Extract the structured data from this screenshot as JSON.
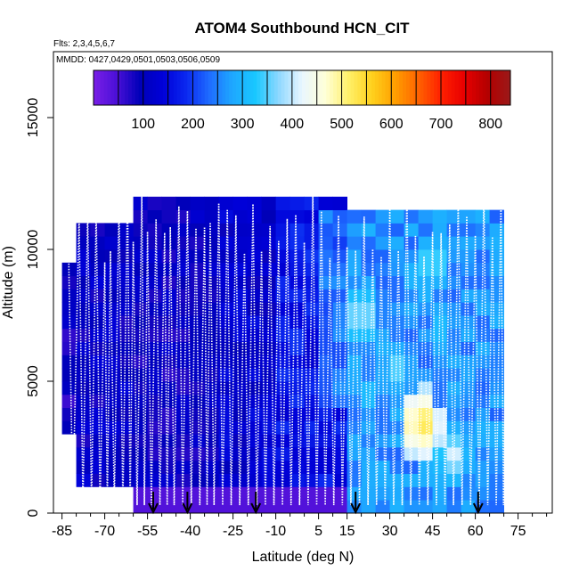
{
  "chart_data": {
    "type": "heatmap",
    "title": "ATOM4 Southbound HCN_CIT",
    "flights_note": "Flts: 2,3,4,5,6,7",
    "dates_note": "MMDD: 0427,0429,0501,0503,0506,0509",
    "xlabel": "Latitude (deg N)",
    "ylabel": "Altitude (m)",
    "xlim": [
      -88,
      87
    ],
    "ylim": [
      0,
      17500
    ],
    "x_ticks": [
      -85,
      -70,
      -55,
      -40,
      -25,
      -10,
      5,
      15,
      30,
      45,
      60,
      75
    ],
    "x_tick_labels": [
      "-85",
      "-70",
      "-55",
      "-40",
      "-25",
      "-10",
      "5",
      "15",
      "30",
      "45",
      "60",
      "75"
    ],
    "y_ticks": [
      0,
      5000,
      10000,
      15000
    ],
    "y_tick_labels": [
      "0",
      "5000",
      "10000",
      "15000"
    ],
    "colorbar": {
      "range": [
        0,
        840
      ],
      "ticks": [
        100,
        200,
        300,
        400,
        500,
        600,
        700,
        800
      ],
      "tick_labels": [
        "100",
        "200",
        "300",
        "400",
        "500",
        "600",
        "700",
        "800"
      ],
      "colors": [
        "#7a1ee6",
        "#4b10d8",
        "#0000b8",
        "#0000d8",
        "#0a28f0",
        "#1f6cff",
        "#1ea8ff",
        "#19c8ff",
        "#8fd8ff",
        "#e9f6ff",
        "#ffffd8",
        "#fff06a",
        "#ffd21e",
        "#ffa000",
        "#ff6400",
        "#ff2000",
        "#e80000",
        "#b40000",
        "#9a1a1a"
      ]
    },
    "grid": {
      "lat_step": 5,
      "alt_step": 500,
      "regions": [
        {
          "lat": [
            -84,
            -75
          ],
          "alt": [
            3000,
            9500
          ],
          "value": 90
        },
        {
          "lat": [
            -80,
            -60
          ],
          "alt": [
            1000,
            11000
          ],
          "value": 110
        },
        {
          "lat": [
            -60,
            -25
          ],
          "alt": [
            0,
            12000
          ],
          "value": 100
        },
        {
          "lat": [
            -30,
            -12
          ],
          "alt": [
            0,
            12000
          ],
          "value": 120
        },
        {
          "lat": [
            -10,
            15
          ],
          "alt": [
            0,
            12000
          ],
          "value": 160
        },
        {
          "lat": [
            5,
            25
          ],
          "alt": [
            4000,
            11500
          ],
          "value": 230
        },
        {
          "lat": [
            15,
            72
          ],
          "alt": [
            0,
            11500
          ],
          "value": 260
        }
      ],
      "hotspots": [
        {
          "lat": 41,
          "alt": 3400,
          "value": 560
        },
        {
          "lat": 20,
          "alt": 7500,
          "value": 420
        },
        {
          "lat": 33,
          "alt": 5500,
          "value": 380
        },
        {
          "lat": 45,
          "alt": 9500,
          "value": 400
        },
        {
          "lat": 52,
          "alt": 2200,
          "value": 420
        },
        {
          "lat": 23,
          "alt": 4500,
          "value": 340
        },
        {
          "lat": 47,
          "alt": 7000,
          "value": 340
        },
        {
          "lat": 37,
          "alt": 9000,
          "value": 330
        }
      ]
    },
    "profile_latitudes": [
      -83,
      -79,
      -76,
      -73,
      -70,
      -68,
      -65,
      -62,
      -60,
      -57,
      -55,
      -52,
      -49,
      -47,
      -44,
      -41,
      -38,
      -35,
      -33,
      -30,
      -27,
      -24,
      -21,
      -18,
      -15,
      -12,
      -9,
      -6,
      -3,
      0,
      3,
      6,
      9,
      12,
      15,
      18,
      21,
      24,
      27,
      30,
      33,
      36,
      39,
      42,
      45,
      48,
      51,
      54,
      57,
      60,
      63,
      66,
      69
    ],
    "ground_arrow_latitudes": [
      -53,
      -41,
      -17,
      18,
      61
    ]
  }
}
